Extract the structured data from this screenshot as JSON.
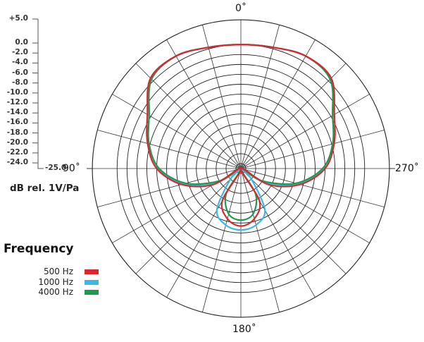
{
  "chart_data": {
    "type": "polar-line",
    "angle_labels": {
      "top": "0˚",
      "left": "90˚",
      "right": "270˚",
      "bottom": "180˚"
    },
    "radial_unit_label": "dB rel. 1V/Pa",
    "radial_ticks": [
      "+5.0",
      "0.0",
      "-2.0",
      "-4.0",
      "-6.0",
      "-8.0",
      "-10.0",
      "-12.0",
      "-14.0",
      "-16.0",
      "-18.0",
      "-20.0",
      "-22.0",
      "-24.0"
    ],
    "radial_min_label": "-25.0",
    "radial_range": [
      -25,
      5
    ],
    "ring_values": [
      0,
      -2,
      -4,
      -6,
      -8,
      -10,
      -12,
      -14,
      -16,
      -18,
      -20,
      -22,
      -24,
      5
    ],
    "spoke_step_deg": 15,
    "symmetric": true,
    "legend_title": "Frequency",
    "series": [
      {
        "name": "500 Hz",
        "color": "#d7282f",
        "angles": [
          0,
          15,
          30,
          45,
          60,
          75,
          90,
          105,
          120,
          135,
          150,
          165,
          180
        ],
        "db": [
          0,
          0.3,
          1.2,
          0.8,
          -3.2,
          -5.5,
          -8,
          -12.6,
          -18.5,
          -25,
          -17.5,
          -14.5,
          -13.4
        ]
      },
      {
        "name": "1000 Hz",
        "color": "#3db7e4",
        "angles": [
          0,
          15,
          30,
          45,
          60,
          75,
          90,
          105,
          120,
          130,
          135,
          150,
          165,
          180
        ],
        "db": [
          0,
          0.3,
          1.2,
          0.5,
          -3.6,
          -5.8,
          -8.4,
          -13,
          -19.5,
          -25,
          -22,
          -15.3,
          -13.2,
          -12.6
        ]
      },
      {
        "name": "4000 Hz",
        "color": "#1e9a4c",
        "angles": [
          0,
          15,
          30,
          45,
          60,
          75,
          90,
          105,
          120,
          140,
          150,
          165,
          180
        ],
        "db": [
          0,
          0.3,
          1.2,
          0.5,
          -3.6,
          -5.8,
          -8.5,
          -13.5,
          -20,
          -25,
          -19,
          -15.5,
          -14.6
        ]
      }
    ]
  }
}
